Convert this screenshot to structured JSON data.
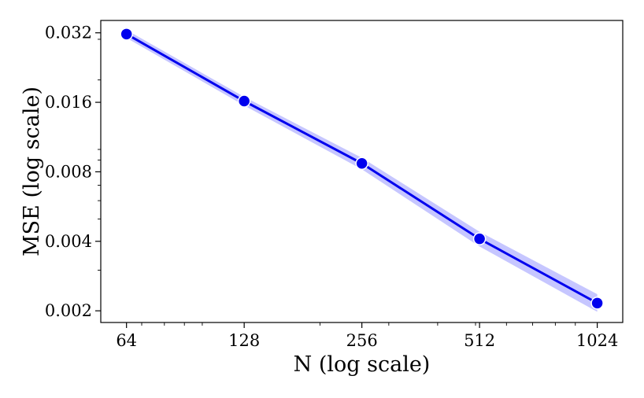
{
  "chart_data": {
    "type": "line",
    "title": "",
    "xlabel": "N (log scale)",
    "ylabel": "MSE (log scale)",
    "x_scale": "log2",
    "y_scale": "log2",
    "x_ticks": [
      64,
      128,
      256,
      512,
      1024
    ],
    "x_tick_labels": [
      "64",
      "128",
      "256",
      "512",
      "1024"
    ],
    "y_ticks": [
      0.002,
      0.004,
      0.008,
      0.016,
      0.032
    ],
    "y_tick_labels": [
      "0.002",
      "0.004",
      "0.008",
      "0.016",
      "0.032"
    ],
    "xlim": [
      55,
      1190
    ],
    "ylim": [
      0.00178,
      0.0362
    ],
    "grid": false,
    "legend": null,
    "series": [
      {
        "x": [
          64,
          128,
          256,
          512,
          1024
        ],
        "y": [
          0.0316,
          0.0162,
          0.0087,
          0.0041,
          0.00216
        ],
        "y_lower": [
          0.0304,
          0.0155,
          0.0082,
          0.0038,
          0.00198
        ],
        "y_upper": [
          0.0329,
          0.0169,
          0.0092,
          0.0044,
          0.00236
        ],
        "color": "#0000ee",
        "band_color": "#b3b3ff",
        "marker": "circle"
      }
    ]
  }
}
